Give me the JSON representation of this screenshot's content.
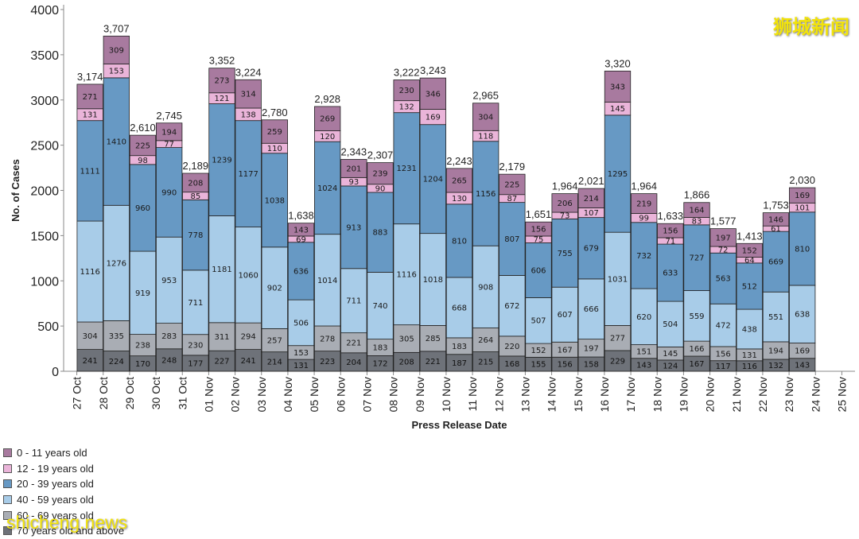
{
  "chart_data": {
    "type": "bar",
    "stacked": true,
    "title": "",
    "xlabel": "Press Release Date",
    "ylabel": "No. of Cases",
    "ylim": [
      0,
      4000
    ],
    "yticks": [
      0,
      500,
      1000,
      1500,
      2000,
      2500,
      3000,
      3500,
      4000
    ],
    "ytick_labels": [
      "0",
      "500",
      "1000",
      "1500",
      "2000",
      "2500",
      "3000",
      "3500",
      "4000"
    ],
    "grid": false,
    "legend_position": "bottom-left",
    "x_ticks": [
      "27 Oct",
      "28 Oct",
      "29 Oct",
      "30 Oct",
      "31 Oct",
      "01 Nov",
      "02 Nov",
      "03 Nov",
      "04 Nov",
      "05 Nov",
      "06 Nov",
      "07 Nov",
      "08 Nov",
      "09 Nov",
      "10 Nov",
      "11 Nov",
      "12 Nov",
      "13 Nov",
      "14 Nov",
      "15 Nov",
      "16 Nov",
      "17 Nov",
      "18 Nov",
      "19 Nov",
      "20 Nov",
      "21 Nov",
      "22 Nov",
      "23 Nov",
      "24 Nov",
      "25 Nov"
    ],
    "categories": [
      "28 Oct",
      "29 Oct",
      "30 Oct",
      "31 Oct",
      "01 Nov",
      "02 Nov",
      "03 Nov",
      "04 Nov",
      "05 Nov",
      "06 Nov",
      "07 Nov",
      "08 Nov",
      "09 Nov",
      "10 Nov",
      "11 Nov",
      "12 Nov",
      "13 Nov",
      "14 Nov",
      "15 Nov",
      "16 Nov",
      "17 Nov",
      "18 Nov",
      "19 Nov",
      "20 Nov",
      "21 Nov",
      "22 Nov",
      "23 Nov",
      "24 Nov"
    ],
    "series": [
      {
        "name": "70 years old and above",
        "color": "#6e7279",
        "values": [
          241,
          224,
          170,
          248,
          177,
          227,
          241,
          214,
          131,
          223,
          204,
          172,
          208,
          221,
          187,
          215,
          168,
          155,
          156,
          158,
          229,
          143,
          124,
          167,
          117,
          116,
          132,
          143
        ]
      },
      {
        "name": "60 - 69 years old",
        "color": "#a9adb4",
        "values": [
          304,
          335,
          238,
          283,
          230,
          311,
          294,
          257,
          153,
          278,
          221,
          183,
          305,
          285,
          183,
          264,
          220,
          152,
          167,
          197,
          277,
          151,
          145,
          166,
          156,
          131,
          194,
          169
        ]
      },
      {
        "name": "40 - 59 years old",
        "color": "#a8cce8",
        "values": [
          1116,
          1276,
          919,
          953,
          711,
          1181,
          1060,
          902,
          506,
          1014,
          711,
          740,
          1116,
          1018,
          668,
          908,
          672,
          507,
          607,
          666,
          1031,
          620,
          504,
          559,
          472,
          438,
          551,
          638
        ]
      },
      {
        "name": "20 - 39 years old",
        "color": "#6799c4",
        "values": [
          1111,
          1410,
          960,
          990,
          778,
          1239,
          1177,
          1038,
          636,
          1024,
          913,
          883,
          1231,
          1204,
          810,
          1156,
          807,
          606,
          755,
          679,
          1295,
          732,
          633,
          727,
          563,
          512,
          669,
          810
        ]
      },
      {
        "name": "12 - 19 years old",
        "color": "#eab4d9",
        "values": [
          131,
          153,
          98,
          77,
          85,
          121,
          138,
          110,
          69,
          120,
          93,
          90,
          132,
          169,
          130,
          118,
          87,
          75,
          73,
          107,
          145,
          99,
          71,
          83,
          72,
          64,
          61,
          101
        ]
      },
      {
        "name": "0 - 11 years old",
        "color": "#a87a9f",
        "values": [
          271,
          309,
          225,
          194,
          208,
          273,
          314,
          259,
          143,
          269,
          201,
          239,
          230,
          346,
          265,
          304,
          225,
          156,
          206,
          214,
          343,
          219,
          156,
          164,
          197,
          152,
          146,
          169
        ]
      }
    ],
    "totals": [
      3174,
      3707,
      2610,
      2745,
      2189,
      3352,
      3224,
      2780,
      1638,
      2928,
      2343,
      2307,
      3222,
      3243,
      2243,
      2965,
      2179,
      1651,
      1964,
      2021,
      3320,
      1964,
      1633,
      1866,
      1577,
      1413,
      1753,
      2030
    ],
    "total_labels": [
      "3,174",
      "3,707",
      "2,610",
      "2,745",
      "2,189",
      "3,352",
      "3,224",
      "2,780",
      "1,638",
      "2,928",
      "2,343",
      "2,307",
      "3,222",
      "3,243",
      "2,243",
      "2,965",
      "2,179",
      "1,651",
      "1,964",
      "2,021",
      "3,320",
      "1,964",
      "1,633",
      "1,866",
      "1,577",
      "1,413",
      "1,753",
      "2,030"
    ]
  },
  "legend": [
    {
      "label": "0 - 11 years old",
      "color": "#a87a9f"
    },
    {
      "label": "12 - 19 years old",
      "color": "#eab4d9"
    },
    {
      "label": "20 - 39 years old",
      "color": "#6799c4"
    },
    {
      "label": "40 - 59 years old",
      "color": "#a8cce8"
    },
    {
      "label": "60 - 69 years old",
      "color": "#a9adb4"
    },
    {
      "label": "70 years old and above",
      "color": "#6e7279"
    }
  ],
  "watermarks": {
    "top_right": "狮城新闻",
    "bottom_left": "shicheng.news"
  }
}
